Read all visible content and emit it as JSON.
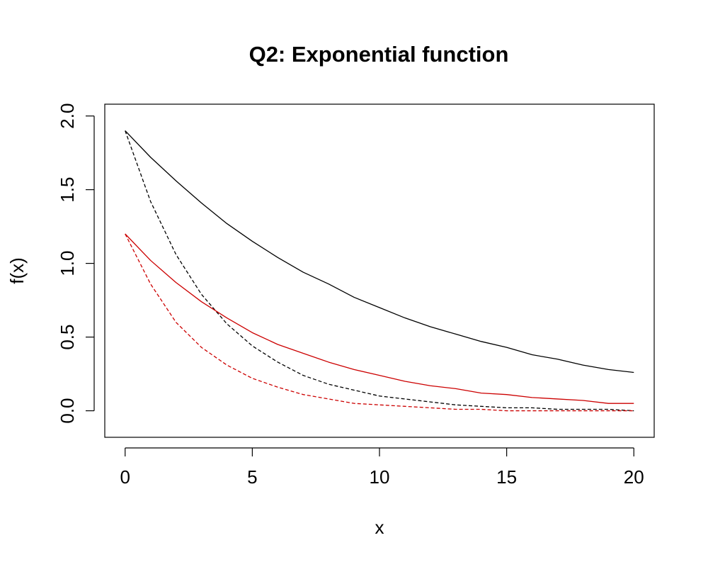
{
  "chart_data": {
    "type": "line",
    "title": "Q2: Exponential function",
    "xlabel": "x",
    "ylabel": "f(x)",
    "xlim": [
      -0.8,
      20.8
    ],
    "ylim": [
      -0.18,
      2.08
    ],
    "xticks": [
      0,
      5,
      10,
      15,
      20
    ],
    "xtick_labels": [
      "0",
      "5",
      "10",
      "15",
      "20"
    ],
    "yticks": [
      0,
      0.5,
      1,
      1.5,
      2
    ],
    "ytick_labels": [
      "0.0",
      "0.5",
      "1.0",
      "1.5",
      "2.0"
    ],
    "grid": false,
    "legend": false,
    "x": [
      0,
      1,
      2,
      3,
      4,
      5,
      6,
      7,
      8,
      9,
      10,
      11,
      12,
      13,
      14,
      15,
      16,
      17,
      18,
      19,
      20
    ],
    "series": [
      {
        "color": "#000000",
        "dash": "solid",
        "values": [
          1.9,
          1.72,
          1.56,
          1.41,
          1.27,
          1.15,
          1.04,
          0.94,
          0.86,
          0.77,
          0.7,
          0.63,
          0.57,
          0.52,
          0.47,
          0.43,
          0.38,
          0.35,
          0.31,
          0.28,
          0.26
        ]
      },
      {
        "color": "#000000",
        "dash": "dashed",
        "values": [
          1.9,
          1.42,
          1.06,
          0.79,
          0.59,
          0.44,
          0.33,
          0.24,
          0.18,
          0.14,
          0.1,
          0.08,
          0.06,
          0.04,
          0.03,
          0.02,
          0.02,
          0.01,
          0.01,
          0.01,
          0.0
        ]
      },
      {
        "color": "#cc0000",
        "dash": "solid",
        "values": [
          1.2,
          1.02,
          0.87,
          0.74,
          0.63,
          0.53,
          0.45,
          0.39,
          0.33,
          0.28,
          0.24,
          0.2,
          0.17,
          0.15,
          0.12,
          0.11,
          0.09,
          0.08,
          0.07,
          0.05,
          0.05
        ]
      },
      {
        "color": "#cc0000",
        "dash": "dashed",
        "values": [
          1.2,
          0.86,
          0.6,
          0.43,
          0.31,
          0.22,
          0.16,
          0.11,
          0.08,
          0.05,
          0.04,
          0.03,
          0.02,
          0.01,
          0.01,
          0.0,
          0.0,
          0.0,
          0.0,
          0.0,
          0.0
        ]
      }
    ]
  }
}
